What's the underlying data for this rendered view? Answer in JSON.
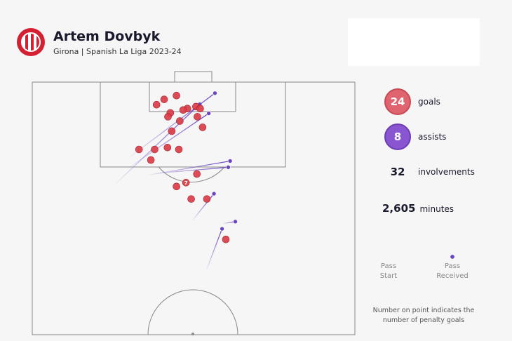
{
  "player": {
    "name": "Artem Dovbyk",
    "subtitle": "Girona | Spanish La Liga 2023-24",
    "crest_icon": "girona-crest-icon"
  },
  "stats": {
    "goals": {
      "value": "24",
      "label": "goals",
      "color": "#e06470"
    },
    "assists": {
      "value": "8",
      "label": "assists",
      "color": "#8a55d0"
    },
    "involvements": {
      "value": "32",
      "label": "involvements"
    },
    "minutes": {
      "value": "2,605",
      "label": "minutes"
    }
  },
  "legend": {
    "start": "Pass\nStart",
    "received": "Pass\nReceived"
  },
  "note": "Number on point indicates the number of penalty goals",
  "chart_data": {
    "type": "scatter",
    "title": "",
    "pitch": {
      "width": 68,
      "depth": 52.5,
      "note": "attacking half; x = metres across from left touchline, y = metres from goal line"
    },
    "goals": [
      {
        "x": 27.8,
        "y": 3.6,
        "penalties": 0
      },
      {
        "x": 30.4,
        "y": 2.8,
        "penalties": 0
      },
      {
        "x": 29.1,
        "y": 6.4,
        "penalties": 0
      },
      {
        "x": 32.7,
        "y": 5.5,
        "penalties": 0
      },
      {
        "x": 26.2,
        "y": 4.7,
        "penalties": 0
      },
      {
        "x": 31.8,
        "y": 5.8,
        "penalties": 0
      },
      {
        "x": 28.6,
        "y": 7.2,
        "penalties": 0
      },
      {
        "x": 31.1,
        "y": 8.1,
        "penalties": 0
      },
      {
        "x": 34.5,
        "y": 5.1,
        "penalties": 0
      },
      {
        "x": 35.4,
        "y": 5.5,
        "penalties": 0
      },
      {
        "x": 34.8,
        "y": 7.2,
        "penalties": 0
      },
      {
        "x": 35.9,
        "y": 9.4,
        "penalties": 0
      },
      {
        "x": 29.4,
        "y": 10.2,
        "penalties": 0
      },
      {
        "x": 28.5,
        "y": 13.6,
        "penalties": 0
      },
      {
        "x": 25.8,
        "y": 14.0,
        "penalties": 0
      },
      {
        "x": 22.5,
        "y": 14.0,
        "penalties": 0
      },
      {
        "x": 25.0,
        "y": 16.2,
        "penalties": 0
      },
      {
        "x": 30.9,
        "y": 14.0,
        "penalties": 0
      },
      {
        "x": 34.7,
        "y": 19.1,
        "penalties": 0
      },
      {
        "x": 30.4,
        "y": 21.7,
        "penalties": 0
      },
      {
        "x": 32.4,
        "y": 20.9,
        "penalties": 7
      },
      {
        "x": 33.5,
        "y": 24.3,
        "penalties": 0
      },
      {
        "x": 36.8,
        "y": 24.3,
        "penalties": 0
      },
      {
        "x": 40.8,
        "y": 32.7,
        "penalties": 0
      }
    ],
    "assists": [
      {
        "start": {
          "x": 17.6,
          "y": 21.1
        },
        "end": {
          "x": 35.3,
          "y": 4.6
        }
      },
      {
        "start": {
          "x": 20.5,
          "y": 15.6
        },
        "end": {
          "x": 38.5,
          "y": 2.3
        }
      },
      {
        "start": {
          "x": 20.5,
          "y": 17.7
        },
        "end": {
          "x": 37.2,
          "y": 6.5
        }
      },
      {
        "start": {
          "x": 24.7,
          "y": 19.3
        },
        "end": {
          "x": 41.7,
          "y": 16.4
        }
      },
      {
        "start": {
          "x": 25.7,
          "y": 19.0
        },
        "end": {
          "x": 41.3,
          "y": 17.7
        }
      },
      {
        "start": {
          "x": 33.8,
          "y": 28.7
        },
        "end": {
          "x": 38.3,
          "y": 23.2
        }
      },
      {
        "start": {
          "x": 36.7,
          "y": 39.1
        },
        "end": {
          "x": 40.0,
          "y": 30.5
        }
      },
      {
        "start": {
          "x": 40.2,
          "y": 29.4
        },
        "end": {
          "x": 42.8,
          "y": 29.0
        }
      }
    ],
    "colors": {
      "goal": "#d83a46",
      "assist": "#6a45c2",
      "pitch_line": "#888888"
    }
  }
}
